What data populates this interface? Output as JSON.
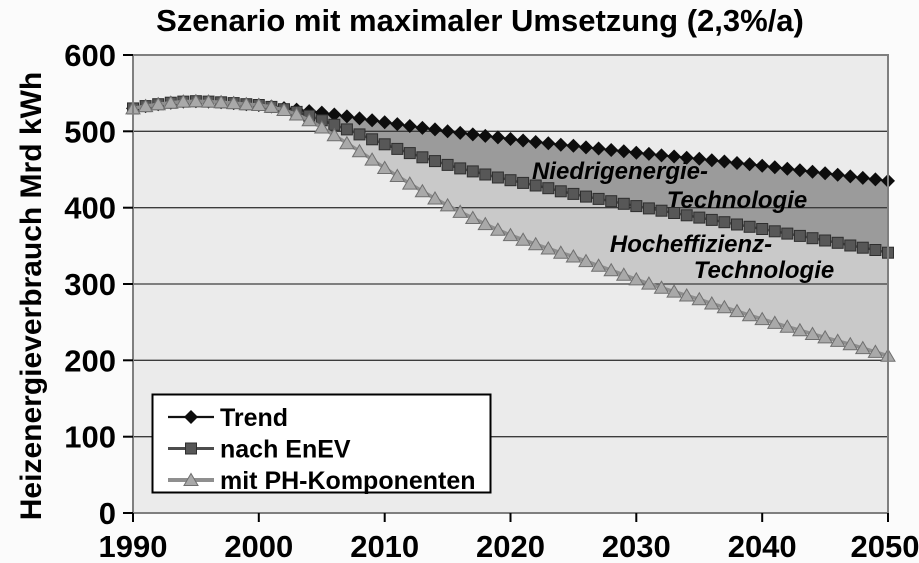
{
  "colors": {
    "page_bg": "#fbfbfb",
    "plot_bg": "#ebebeb",
    "grid": "#3c3c3c",
    "border": "#7f7f7f",
    "legend_bg": "#ffffff",
    "text": "#000000"
  },
  "chart_data": {
    "type": "line",
    "title": "Szenario mit maximaler Umsetzung (2,3%/a)",
    "ylabel": "Heizenergieverbrauch Mrd kWh",
    "xlabel": "",
    "xlim": [
      1990,
      2050
    ],
    "ylim": [
      0,
      600
    ],
    "x_ticks": [
      1990,
      2000,
      2010,
      2020,
      2030,
      2040,
      2050
    ],
    "y_ticks": [
      0,
      100,
      200,
      300,
      400,
      500,
      600
    ],
    "grid": "horizontal",
    "legend_position": "inside-bottom-left",
    "x": [
      1990,
      1991,
      1992,
      1993,
      1994,
      1995,
      1996,
      1997,
      1998,
      1999,
      2000,
      2001,
      2002,
      2003,
      2004,
      2005,
      2006,
      2007,
      2008,
      2009,
      2010,
      2011,
      2012,
      2013,
      2014,
      2015,
      2016,
      2017,
      2018,
      2019,
      2020,
      2021,
      2022,
      2023,
      2024,
      2025,
      2026,
      2027,
      2028,
      2029,
      2030,
      2031,
      2032,
      2033,
      2034,
      2035,
      2036,
      2037,
      2038,
      2039,
      2040,
      2041,
      2042,
      2043,
      2044,
      2045,
      2046,
      2047,
      2048,
      2049,
      2050
    ],
    "series": [
      {
        "name": "Trend",
        "marker": "diamond",
        "line_color": "#121212",
        "line_width": 1.8,
        "marker_fill": "#0d0d0d",
        "marker_stroke": "#000000",
        "values": [
          530,
          533,
          535.5,
          537.5,
          539,
          539.5,
          539,
          538,
          537,
          535.5,
          534.5,
          532.5,
          530.5,
          528.5,
          526.5,
          524.5,
          522,
          519.5,
          517,
          514.5,
          512,
          509.5,
          507,
          504.5,
          502.5,
          500,
          498,
          496,
          494,
          492,
          490,
          488,
          486,
          484.5,
          482.5,
          481,
          479,
          477.5,
          475.5,
          474,
          472,
          470.5,
          468.5,
          467,
          465.5,
          464,
          462,
          460.5,
          458.5,
          457,
          455,
          453,
          451,
          449,
          447,
          445,
          443,
          441,
          439,
          437,
          435
        ]
      },
      {
        "name": "nach EnEV",
        "marker": "square",
        "line_color": "#4d4d4d",
        "line_width": 2.5,
        "marker_fill": "#575757",
        "marker_stroke": "#2e2e2e",
        "values": [
          530,
          533,
          535.5,
          537.5,
          539,
          539.5,
          539,
          538,
          537,
          535.5,
          534.5,
          532,
          529,
          525.5,
          520.5,
          514.5,
          508.5,
          502.5,
          496,
          489.5,
          483,
          477,
          471.5,
          466,
          461,
          456,
          451.5,
          447.5,
          443.5,
          439.5,
          436,
          432.5,
          429,
          425.5,
          421.5,
          418,
          414.5,
          411.5,
          408.5,
          405,
          402,
          399,
          396,
          393,
          390,
          387,
          384,
          381,
          378,
          375,
          372,
          369,
          366,
          363,
          360,
          357,
          354,
          350.5,
          347.5,
          344.5,
          341
        ]
      },
      {
        "name": "mit PH-Komponenten",
        "marker": "triangle",
        "line_color": "#8f8f8f",
        "line_width": 3.5,
        "marker_fill": "#a9a9a9",
        "marker_stroke": "#6f6f6f",
        "values": [
          530,
          533,
          535.5,
          537.5,
          539,
          539.5,
          539,
          538,
          537,
          535.5,
          534.5,
          532,
          528,
          522,
          514.5,
          505,
          495,
          484.5,
          474,
          463,
          452,
          441.5,
          431.5,
          421.5,
          412,
          403,
          394.5,
          386.5,
          378.5,
          371,
          364,
          358,
          352,
          346.5,
          341,
          336,
          330,
          324,
          318,
          312,
          306,
          300.5,
          295,
          290,
          285,
          280,
          274.5,
          269.5,
          264.5,
          259,
          254,
          249,
          244,
          239.5,
          234.5,
          230,
          225.5,
          221,
          216,
          211,
          206
        ]
      }
    ],
    "bands": [
      {
        "label": "Niedrigenergie-Technologie",
        "between": [
          "Trend",
          "nach EnEV"
        ],
        "color": "#9b9b9b"
      },
      {
        "label": "Hocheffizienz-Technologie",
        "between": [
          "nach EnEV",
          "mit PH-Komponenten"
        ],
        "color": "#c9c9c9"
      }
    ],
    "annotations": [
      {
        "text": "Niedrigenergie-"
      },
      {
        "text": "Technologie"
      },
      {
        "text": "Hocheffizienz-"
      },
      {
        "text": "Technologie"
      }
    ]
  }
}
